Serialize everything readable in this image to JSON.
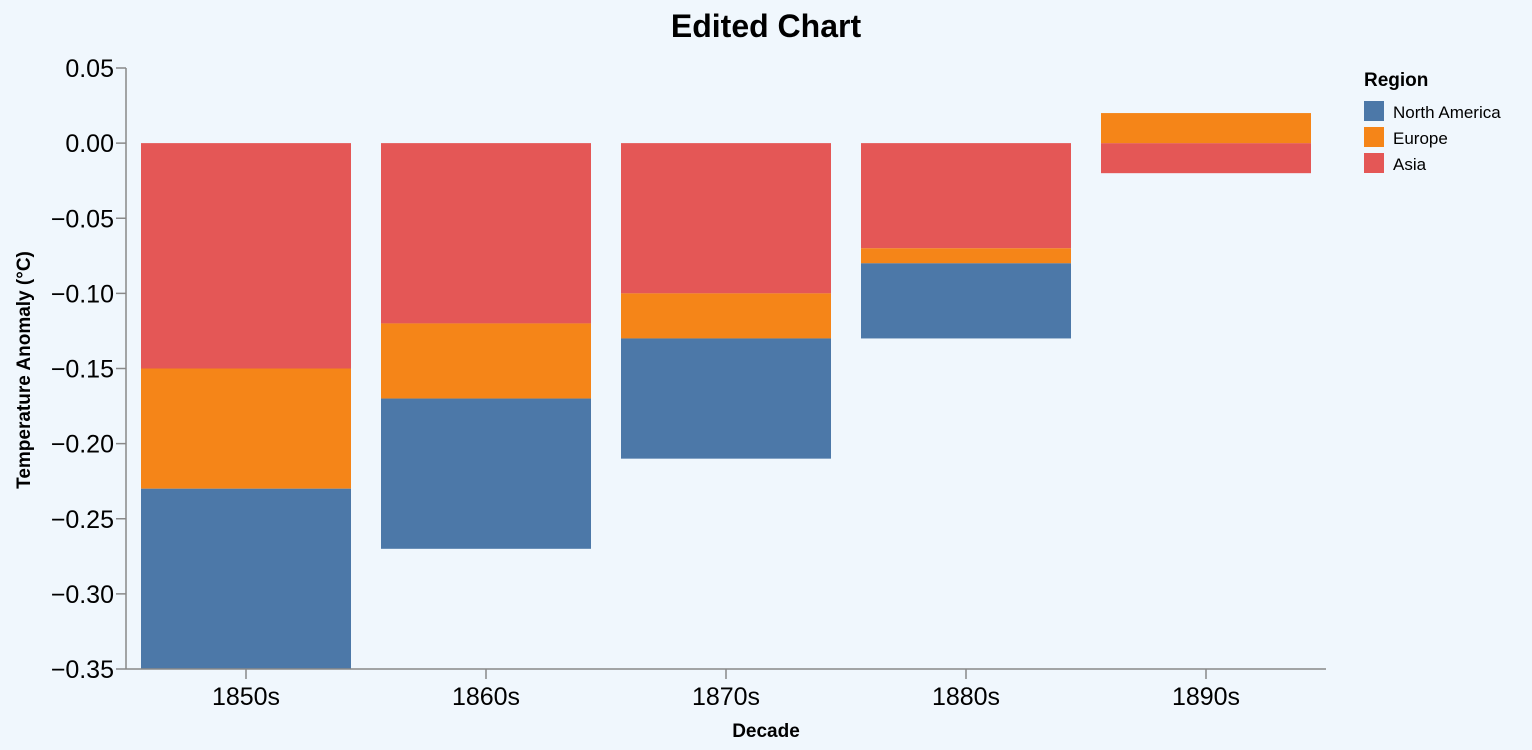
{
  "chart_data": {
    "type": "bar",
    "stacked": true,
    "title": "Edited Chart",
    "xlabel": "Decade",
    "ylabel": "Temperature Anomaly (°C)",
    "categories": [
      "1850s",
      "1860s",
      "1870s",
      "1880s",
      "1890s"
    ],
    "ylim": [
      -0.35,
      0.05
    ],
    "yticks": [
      "0.05",
      "0.00",
      "−0.05",
      "−0.10",
      "−0.15",
      "−0.20",
      "−0.25",
      "−0.30",
      "−0.35"
    ],
    "yticks_values": [
      0.05,
      0.0,
      -0.05,
      -0.1,
      -0.15,
      -0.2,
      -0.25,
      -0.3,
      -0.35
    ],
    "grid": false,
    "legend": {
      "title": "Region",
      "placement": "right"
    },
    "series": [
      {
        "name": "North America",
        "color": "#4c78a8",
        "values": [
          -0.12,
          -0.1,
          -0.08,
          -0.05,
          null
        ]
      },
      {
        "name": "Europe",
        "color": "#f58518",
        "values": [
          -0.08,
          -0.05,
          -0.03,
          -0.01,
          0.02
        ]
      },
      {
        "name": "Asia",
        "color": "#e45756",
        "values": [
          -0.15,
          -0.12,
          -0.1,
          -0.07,
          -0.02
        ]
      }
    ]
  }
}
